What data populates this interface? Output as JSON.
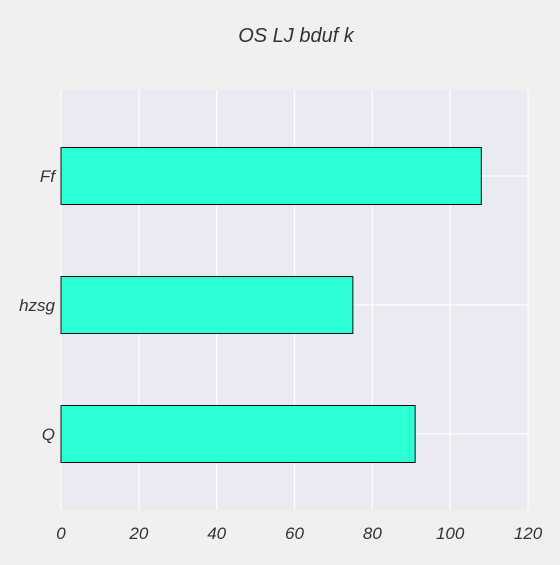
{
  "chart_data": {
    "type": "bar",
    "orientation": "horizontal",
    "title": "OS LJ  bduf k",
    "xlabel": "",
    "ylabel": "",
    "categories": [
      "Ff",
      "hzsg",
      "Q"
    ],
    "values": [
      108,
      75,
      91
    ],
    "xlim": [
      0,
      120
    ],
    "xticks": [
      0,
      20,
      40,
      60,
      80,
      100,
      120
    ],
    "grid": true,
    "colors": {
      "bar_fill": "#2bffd3",
      "bar_edge": "#111111",
      "plot_background": "#eaeaf2",
      "page_background": "#f0f0f0",
      "grid": "#ffffff",
      "text": "#333333"
    }
  }
}
